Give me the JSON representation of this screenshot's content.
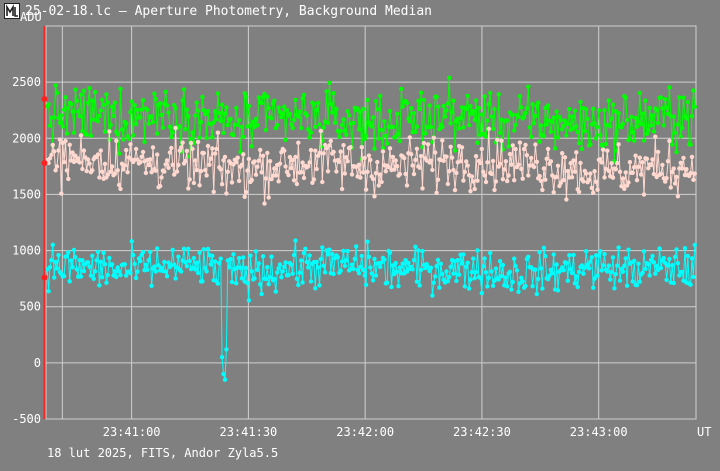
{
  "window": {
    "title": "25-02-18.lc – Aperture Photometry, Background Median",
    "icon": "lightcurve-app-icon"
  },
  "footer": {
    "caption": "18 lut 2025, FITS, Andor Zyla5.5"
  },
  "colors": {
    "background": "#808080",
    "grid": "#d0d0d0",
    "cursor": "#ff2020",
    "series_green": "#00ff00",
    "series_pink": "#ffd8d0",
    "series_cyan": "#00ffff"
  },
  "chart_data": {
    "type": "line",
    "ylabel": "ADU",
    "xlabel": "UT",
    "ylim": [
      -500,
      3000
    ],
    "xlim": [
      "23:40:38",
      "23:43:25"
    ],
    "grid": true,
    "yticks": [
      -500,
      0,
      500,
      1000,
      1500,
      2000,
      2500
    ],
    "xticks": [
      "23:41:00",
      "23:41:30",
      "23:42:00",
      "23:42:30",
      "23:43:00"
    ],
    "markers": true,
    "series": [
      {
        "color": "#00ff00",
        "mean_level": 2150,
        "range": [
          1700,
          2650
        ],
        "samples_every_10s": [
          2200,
          2210,
          2180,
          2250,
          2180,
          2120,
          2170,
          2180,
          2140,
          2140,
          2210,
          2190,
          2150,
          2150,
          2110,
          2140,
          2200
        ]
      },
      {
        "color": "#ffd8d0",
        "mean_level": 1780,
        "range": [
          1280,
          2180
        ],
        "samples_every_10s": [
          1800,
          1830,
          1790,
          1780,
          1750,
          1720,
          1760,
          1800,
          1760,
          1740,
          1790,
          1810,
          1780,
          1760,
          1690,
          1720,
          1740
        ]
      },
      {
        "color": "#00ffff",
        "mean_level": 820,
        "range": [
          -150,
          1250
        ],
        "samples_every_10s": [
          860,
          850,
          820,
          860,
          860,
          790,
          840,
          870,
          870,
          830,
          830,
          840,
          790,
          810,
          860,
          830,
          850
        ]
      }
    ],
    "cursor": {
      "x": "23:40:38",
      "markers_y": [
        2350,
        1780,
        760
      ]
    }
  }
}
